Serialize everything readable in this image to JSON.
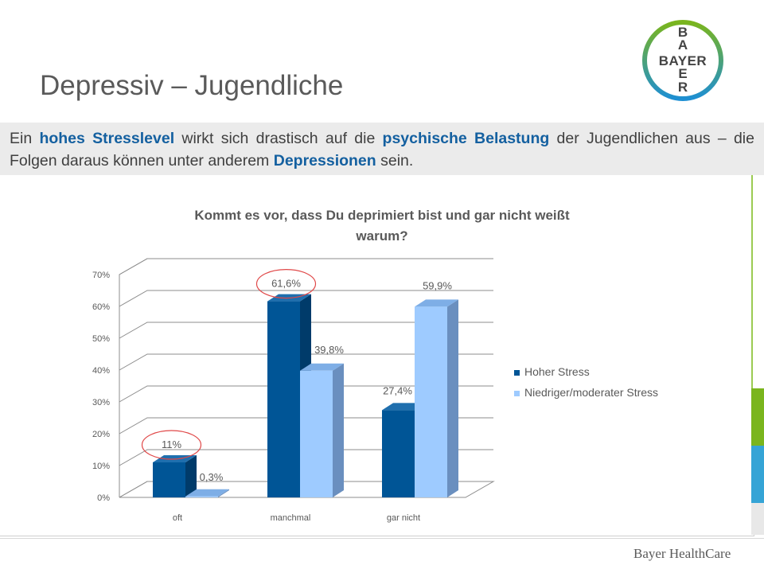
{
  "slide": {
    "title": "Depressiv – Jugendliche",
    "intro": {
      "parts": [
        {
          "text": "Ein ",
          "bold": false
        },
        {
          "text": "hohes Stresslevel",
          "bold": true
        },
        {
          "text": " wirkt sich drastisch auf die ",
          "bold": false
        },
        {
          "text": "psychische Belastung",
          "bold": true
        },
        {
          "text": " der Jugendlichen aus – die Folgen daraus können unter anderem ",
          "bold": false
        },
        {
          "text": "Depressionen",
          "bold": true
        },
        {
          "text": " sein.",
          "bold": false
        }
      ]
    },
    "logo": {
      "letters_vertical": [
        "B",
        "A",
        "Y",
        "E",
        "R"
      ],
      "letters_horizontal": "BAYER"
    },
    "footer": "Bayer HealthCare",
    "accent_colors": {
      "emphasis": "#1460a0",
      "side_green": "#7ab51d",
      "side_blue": "#35a4d6"
    }
  },
  "chart_data": {
    "type": "bar",
    "title_lines": [
      "Kommt es vor, dass Du deprimiert bist und gar nicht weißt",
      "warum?"
    ],
    "categories": [
      "oft",
      "manchmal",
      "gar nicht"
    ],
    "series": [
      {
        "name": "Hoher Stress",
        "values": [
          11,
          61.6,
          27.4
        ],
        "labels": [
          "11%",
          "61,6%",
          "27,4%"
        ],
        "color": "#005596"
      },
      {
        "name": "Niedriger/moderater Stress",
        "values": [
          0.3,
          39.8,
          59.9
        ],
        "labels": [
          "0,3%",
          "39,8%",
          "59,9%"
        ],
        "color": "#9ecbff"
      }
    ],
    "yticks": [
      "0%",
      "10%",
      "20%",
      "30%",
      "40%",
      "50%",
      "60%",
      "70%"
    ],
    "ylim": [
      0,
      70
    ],
    "grid": true,
    "style": "3d-clustered-column",
    "legend_position": "right",
    "highlighted": [
      "11%",
      "61,6%"
    ],
    "highlight_color": "#e04848"
  }
}
